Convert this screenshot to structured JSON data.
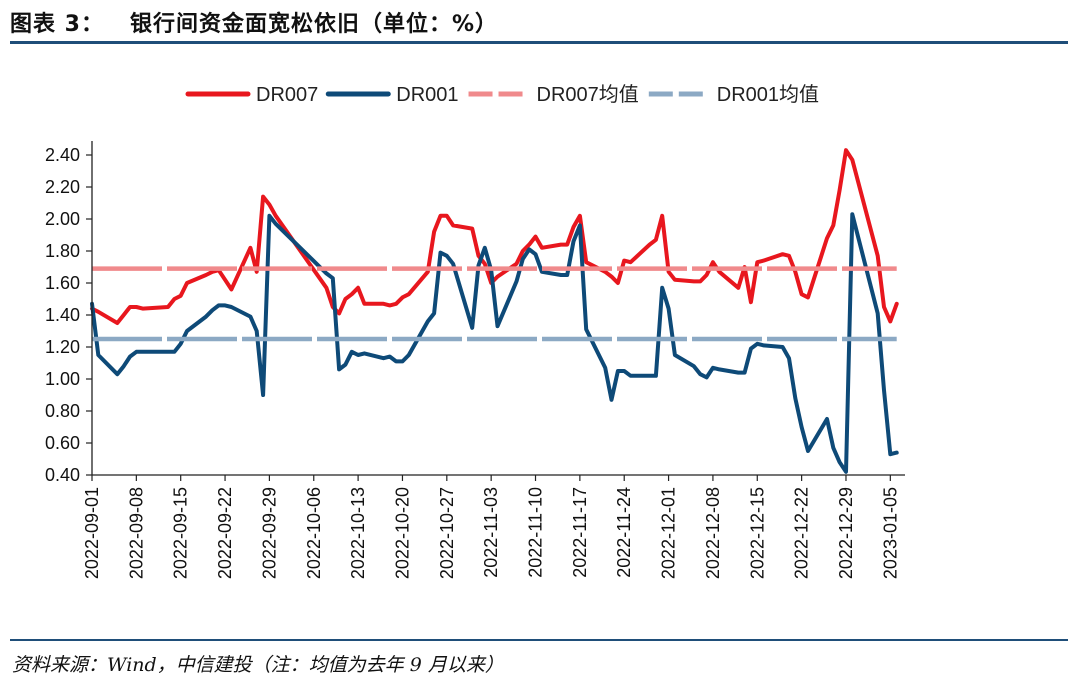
{
  "header": {
    "label": "图表 3：",
    "title": "银行间资金面宽松依旧（单位：%）"
  },
  "source": "资料来源：Wind，中信建投（注：均值为去年 9 月以来）",
  "chart_data": {
    "type": "line",
    "ylim": [
      0.4,
      2.4
    ],
    "yticks": [
      "2.40",
      "2.20",
      "2.00",
      "1.80",
      "1.60",
      "1.40",
      "1.20",
      "1.00",
      "0.80",
      "0.60",
      "0.40"
    ],
    "xlim": [
      "2022-09-01",
      "2023-01-07"
    ],
    "xticks": [
      "2022-09-01",
      "2022-09-08",
      "2022-09-15",
      "2022-09-22",
      "2022-09-29",
      "2022-10-06",
      "2022-10-13",
      "2022-10-20",
      "2022-10-27",
      "2022-11-03",
      "2022-11-10",
      "2022-11-17",
      "2022-11-24",
      "2022-12-01",
      "2022-12-08",
      "2022-12-15",
      "2022-12-22",
      "2022-12-29",
      "2023-01-05"
    ],
    "legend_position": "top",
    "series": [
      {
        "name": "DR007",
        "color": "#e8171e",
        "points": [
          [
            "2022-09-01",
            1.44
          ],
          [
            "2022-09-02",
            1.42
          ],
          [
            "2022-09-05",
            1.35
          ],
          [
            "2022-09-06",
            1.4
          ],
          [
            "2022-09-07",
            1.45
          ],
          [
            "2022-09-08",
            1.45
          ],
          [
            "2022-09-09",
            1.44
          ],
          [
            "2022-09-13",
            1.45
          ],
          [
            "2022-09-14",
            1.5
          ],
          [
            "2022-09-15",
            1.52
          ],
          [
            "2022-09-16",
            1.6
          ],
          [
            "2022-09-19",
            1.65
          ],
          [
            "2022-09-20",
            1.67
          ],
          [
            "2022-09-21",
            1.68
          ],
          [
            "2022-09-22",
            1.62
          ],
          [
            "2022-09-23",
            1.56
          ],
          [
            "2022-09-26",
            1.82
          ],
          [
            "2022-09-27",
            1.67
          ],
          [
            "2022-09-28",
            2.14
          ],
          [
            "2022-09-29",
            2.09
          ],
          [
            "2022-09-30",
            2.02
          ],
          [
            "2022-10-08",
            1.57
          ],
          [
            "2022-10-09",
            1.45
          ],
          [
            "2022-10-10",
            1.41
          ],
          [
            "2022-10-11",
            1.5
          ],
          [
            "2022-10-12",
            1.53
          ],
          [
            "2022-10-13",
            1.57
          ],
          [
            "2022-10-14",
            1.47
          ],
          [
            "2022-10-17",
            1.47
          ],
          [
            "2022-10-18",
            1.46
          ],
          [
            "2022-10-19",
            1.47
          ],
          [
            "2022-10-20",
            1.51
          ],
          [
            "2022-10-21",
            1.53
          ],
          [
            "2022-10-24",
            1.67
          ],
          [
            "2022-10-25",
            1.92
          ],
          [
            "2022-10-26",
            2.02
          ],
          [
            "2022-10-27",
            2.02
          ],
          [
            "2022-10-28",
            1.96
          ],
          [
            "2022-10-31",
            1.94
          ],
          [
            "2022-11-01",
            1.77
          ],
          [
            "2022-11-02",
            1.72
          ],
          [
            "2022-11-03",
            1.6
          ],
          [
            "2022-11-04",
            1.64
          ],
          [
            "2022-11-07",
            1.72
          ],
          [
            "2022-11-08",
            1.8
          ],
          [
            "2022-11-09",
            1.84
          ],
          [
            "2022-11-10",
            1.89
          ],
          [
            "2022-11-11",
            1.82
          ],
          [
            "2022-11-14",
            1.84
          ],
          [
            "2022-11-15",
            1.84
          ],
          [
            "2022-11-16",
            1.95
          ],
          [
            "2022-11-17",
            2.02
          ],
          [
            "2022-11-18",
            1.73
          ],
          [
            "2022-11-21",
            1.67
          ],
          [
            "2022-11-22",
            1.64
          ],
          [
            "2022-11-23",
            1.6
          ],
          [
            "2022-11-24",
            1.74
          ],
          [
            "2022-11-25",
            1.73
          ],
          [
            "2022-11-28",
            1.84
          ],
          [
            "2022-11-29",
            1.87
          ],
          [
            "2022-11-30",
            2.02
          ],
          [
            "2022-12-01",
            1.67
          ],
          [
            "2022-12-02",
            1.62
          ],
          [
            "2022-12-05",
            1.61
          ],
          [
            "2022-12-06",
            1.61
          ],
          [
            "2022-12-07",
            1.65
          ],
          [
            "2022-12-08",
            1.73
          ],
          [
            "2022-12-09",
            1.67
          ],
          [
            "2022-12-12",
            1.57
          ],
          [
            "2022-12-13",
            1.7
          ],
          [
            "2022-12-14",
            1.48
          ],
          [
            "2022-12-15",
            1.73
          ],
          [
            "2022-12-16",
            1.74
          ],
          [
            "2022-12-19",
            1.78
          ],
          [
            "2022-12-20",
            1.77
          ],
          [
            "2022-12-21",
            1.67
          ],
          [
            "2022-12-22",
            1.53
          ],
          [
            "2022-12-23",
            1.51
          ],
          [
            "2022-12-26",
            1.88
          ],
          [
            "2022-12-27",
            1.96
          ],
          [
            "2022-12-28",
            2.18
          ],
          [
            "2022-12-29",
            2.43
          ],
          [
            "2022-12-30",
            2.37
          ],
          [
            "2023-01-03",
            1.77
          ],
          [
            "2023-01-04",
            1.45
          ],
          [
            "2023-01-05",
            1.36
          ],
          [
            "2023-01-06",
            1.47
          ]
        ]
      },
      {
        "name": "DR001",
        "color": "#0e4a78",
        "points": [
          [
            "2022-09-01",
            1.47
          ],
          [
            "2022-09-02",
            1.15
          ],
          [
            "2022-09-05",
            1.03
          ],
          [
            "2022-09-06",
            1.08
          ],
          [
            "2022-09-07",
            1.14
          ],
          [
            "2022-09-08",
            1.17
          ],
          [
            "2022-09-09",
            1.17
          ],
          [
            "2022-09-13",
            1.17
          ],
          [
            "2022-09-14",
            1.17
          ],
          [
            "2022-09-15",
            1.22
          ],
          [
            "2022-09-16",
            1.3
          ],
          [
            "2022-09-19",
            1.39
          ],
          [
            "2022-09-20",
            1.43
          ],
          [
            "2022-09-21",
            1.46
          ],
          [
            "2022-09-22",
            1.46
          ],
          [
            "2022-09-23",
            1.45
          ],
          [
            "2022-09-26",
            1.39
          ],
          [
            "2022-09-27",
            1.3
          ],
          [
            "2022-09-28",
            0.9
          ],
          [
            "2022-09-29",
            2.02
          ],
          [
            "2022-09-30",
            1.97
          ],
          [
            "2022-10-08",
            1.66
          ],
          [
            "2022-10-09",
            1.63
          ],
          [
            "2022-10-10",
            1.06
          ],
          [
            "2022-10-11",
            1.09
          ],
          [
            "2022-10-12",
            1.17
          ],
          [
            "2022-10-13",
            1.15
          ],
          [
            "2022-10-14",
            1.16
          ],
          [
            "2022-10-17",
            1.13
          ],
          [
            "2022-10-18",
            1.14
          ],
          [
            "2022-10-19",
            1.11
          ],
          [
            "2022-10-20",
            1.11
          ],
          [
            "2022-10-21",
            1.15
          ],
          [
            "2022-10-24",
            1.36
          ],
          [
            "2022-10-25",
            1.41
          ],
          [
            "2022-10-26",
            1.79
          ],
          [
            "2022-10-27",
            1.77
          ],
          [
            "2022-10-28",
            1.72
          ],
          [
            "2022-10-31",
            1.32
          ],
          [
            "2022-11-01",
            1.71
          ],
          [
            "2022-11-02",
            1.82
          ],
          [
            "2022-11-03",
            1.68
          ],
          [
            "2022-11-04",
            1.33
          ],
          [
            "2022-11-07",
            1.61
          ],
          [
            "2022-11-08",
            1.75
          ],
          [
            "2022-11-09",
            1.81
          ],
          [
            "2022-11-10",
            1.78
          ],
          [
            "2022-11-11",
            1.67
          ],
          [
            "2022-11-14",
            1.65
          ],
          [
            "2022-11-15",
            1.65
          ],
          [
            "2022-11-16",
            1.86
          ],
          [
            "2022-11-17",
            1.96
          ],
          [
            "2022-11-18",
            1.31
          ],
          [
            "2022-11-21",
            1.07
          ],
          [
            "2022-11-22",
            0.87
          ],
          [
            "2022-11-23",
            1.05
          ],
          [
            "2022-11-24",
            1.05
          ],
          [
            "2022-11-25",
            1.02
          ],
          [
            "2022-11-28",
            1.02
          ],
          [
            "2022-11-29",
            1.02
          ],
          [
            "2022-11-30",
            1.57
          ],
          [
            "2022-12-01",
            1.44
          ],
          [
            "2022-12-02",
            1.15
          ],
          [
            "2022-12-05",
            1.08
          ],
          [
            "2022-12-06",
            1.03
          ],
          [
            "2022-12-07",
            1.01
          ],
          [
            "2022-12-08",
            1.07
          ],
          [
            "2022-12-09",
            1.06
          ],
          [
            "2022-12-12",
            1.04
          ],
          [
            "2022-12-13",
            1.04
          ],
          [
            "2022-12-14",
            1.19
          ],
          [
            "2022-12-15",
            1.22
          ],
          [
            "2022-12-16",
            1.21
          ],
          [
            "2022-12-19",
            1.2
          ],
          [
            "2022-12-20",
            1.13
          ],
          [
            "2022-12-21",
            0.88
          ],
          [
            "2022-12-22",
            0.7
          ],
          [
            "2022-12-23",
            0.55
          ],
          [
            "2022-12-26",
            0.75
          ],
          [
            "2022-12-27",
            0.57
          ],
          [
            "2022-12-28",
            0.48
          ],
          [
            "2022-12-29",
            0.42
          ],
          [
            "2022-12-30",
            2.03
          ],
          [
            "2023-01-03",
            1.41
          ],
          [
            "2023-01-04",
            0.93
          ],
          [
            "2023-01-05",
            0.53
          ],
          [
            "2023-01-06",
            0.54
          ]
        ]
      },
      {
        "name": "DR007均值",
        "color": "#f08a8c",
        "dashed": true,
        "points": [
          [
            "2022-09-01",
            1.69
          ],
          [
            "2023-01-06",
            1.69
          ]
        ]
      },
      {
        "name": "DR001均值",
        "color": "#8ca9c4",
        "dashed": true,
        "points": [
          [
            "2022-09-01",
            1.25
          ],
          [
            "2023-01-06",
            1.25
          ]
        ]
      }
    ]
  }
}
